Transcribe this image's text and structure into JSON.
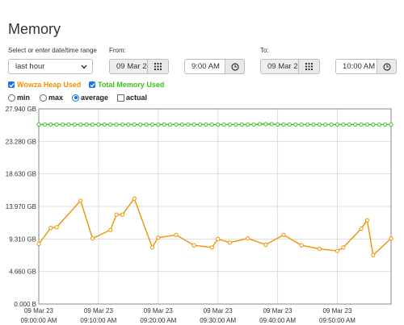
{
  "page": {
    "title": "Memory"
  },
  "range": {
    "label": "Select or enter date/time range",
    "selected": "last hour"
  },
  "from": {
    "label": "From:",
    "date": "09 Mar 2",
    "time": "9:00 AM"
  },
  "to": {
    "label": "To:",
    "date": "09 Mar 2",
    "time": "10:00 AM"
  },
  "series_toggles": [
    {
      "label": "Wowza Heap Used",
      "checked": true,
      "color": "#f29100"
    },
    {
      "label": "Total Memory Used",
      "checked": true,
      "color": "#3cc21b"
    }
  ],
  "aggregations": [
    {
      "label": "min",
      "type": "radio",
      "checked": false
    },
    {
      "label": "max",
      "type": "radio",
      "checked": false
    },
    {
      "label": "average",
      "type": "radio",
      "checked": true
    },
    {
      "label": "actual",
      "type": "checkbox",
      "checked": false
    }
  ],
  "icons": {
    "calendar": "calendar-grid-icon",
    "clock": "clock-icon",
    "dropdown": "chevron-down-icon"
  },
  "chart_data": {
    "type": "line",
    "ylim": [
      0,
      27.94
    ],
    "y_ticks": [
      {
        "value": 0,
        "label": "0.000 B"
      },
      {
        "value": 4.66,
        "label": "4.660 GB"
      },
      {
        "value": 9.31,
        "label": "9.310 GB"
      },
      {
        "value": 13.97,
        "label": "13.970 GB"
      },
      {
        "value": 18.63,
        "label": "18.630 GB"
      },
      {
        "value": 23.28,
        "label": "23.280 GB"
      },
      {
        "value": 27.94,
        "label": "27.940 GB"
      }
    ],
    "xlim": [
      0,
      59
    ],
    "x_ticks": [
      {
        "value": 0,
        "label": [
          "09 Mar 23",
          "09:00:00 AM"
        ]
      },
      {
        "value": 10,
        "label": [
          "09 Mar 23",
          "09:10:00 AM"
        ]
      },
      {
        "value": 20,
        "label": [
          "09 Mar 23",
          "09:20:00 AM"
        ]
      },
      {
        "value": 30,
        "label": [
          "09 Mar 23",
          "09:30:00 AM"
        ]
      },
      {
        "value": 40,
        "label": [
          "09 Mar 23",
          "09:40:00 AM"
        ]
      },
      {
        "value": 50,
        "label": [
          "09 Mar 23",
          "09:50:00 AM"
        ]
      }
    ],
    "grid": true,
    "series": [
      {
        "name": "Total Memory Used",
        "color": "#3cc21b",
        "x": [
          0,
          1,
          2,
          3,
          4,
          5,
          6,
          7,
          8,
          9,
          10,
          11,
          12,
          13,
          14,
          15,
          16,
          17,
          18,
          19,
          20,
          21,
          22,
          23,
          24,
          25,
          26,
          27,
          28,
          29,
          30,
          31,
          32,
          33,
          34,
          35,
          36,
          37,
          38,
          39,
          40,
          41,
          42,
          43,
          44,
          45,
          46,
          47,
          48,
          49,
          50,
          51,
          52,
          53,
          54,
          55,
          56,
          57,
          58,
          59
        ],
        "y": [
          25.7,
          25.7,
          25.7,
          25.7,
          25.7,
          25.7,
          25.7,
          25.7,
          25.7,
          25.7,
          25.7,
          25.7,
          25.7,
          25.7,
          25.7,
          25.7,
          25.7,
          25.7,
          25.7,
          25.7,
          25.7,
          25.7,
          25.7,
          25.7,
          25.7,
          25.7,
          25.7,
          25.7,
          25.7,
          25.7,
          25.7,
          25.7,
          25.7,
          25.7,
          25.7,
          25.7,
          25.7,
          25.75,
          25.75,
          25.75,
          25.7,
          25.7,
          25.7,
          25.7,
          25.7,
          25.7,
          25.7,
          25.7,
          25.7,
          25.7,
          25.7,
          25.7,
          25.7,
          25.7,
          25.7,
          25.7,
          25.7,
          25.7,
          25.7,
          25.7
        ]
      },
      {
        "name": "Wowza Heap Used",
        "color": "#f29100",
        "x": [
          0,
          2,
          3,
          7,
          9,
          12,
          13,
          14,
          16,
          19,
          20,
          23,
          26,
          29,
          30,
          32,
          35,
          38,
          41,
          44,
          47,
          50,
          51,
          54,
          55,
          56,
          59
        ],
        "y": [
          8.6,
          10.9,
          11.0,
          14.8,
          9.4,
          10.6,
          12.8,
          12.8,
          15.1,
          8.1,
          9.5,
          9.9,
          8.4,
          8.1,
          9.3,
          8.8,
          9.4,
          8.5,
          9.9,
          8.4,
          7.9,
          7.6,
          8.1,
          10.8,
          12.0,
          7.0,
          9.4
        ]
      }
    ]
  }
}
